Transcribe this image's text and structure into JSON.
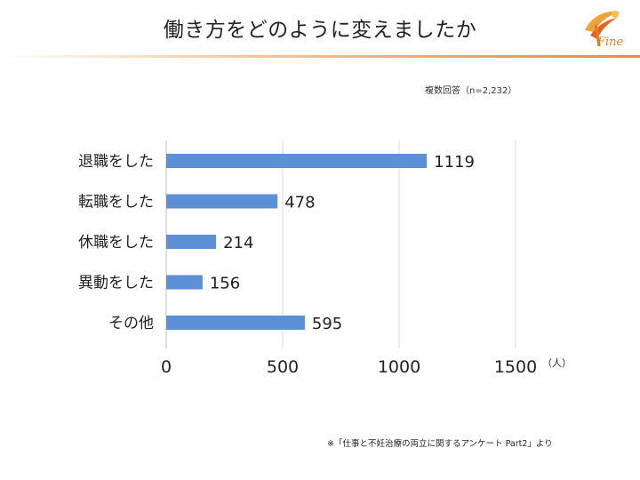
{
  "slide": {
    "title": "働き方をどのように変えましたか",
    "note": "複数回答（n=2,232）",
    "source": "※「仕事と不妊治療の両立に関するアンケート Part2」より",
    "logo_text": "Fine",
    "accent_color": "#e98a4d",
    "bar_color": "#5b8fd6"
  },
  "chart_data": {
    "type": "bar",
    "orientation": "horizontal",
    "categories": [
      "退職をした",
      "転職をした",
      "休職をした",
      "異動をした",
      "その他"
    ],
    "values": [
      1119,
      478,
      214,
      156,
      595
    ],
    "title": "",
    "xlabel": "",
    "ylabel": "",
    "unit": "（人）",
    "xlim": [
      0,
      1500
    ],
    "xticks": [
      "0",
      "500",
      "1000",
      "1500"
    ],
    "grid": "vertical",
    "legend": "none"
  }
}
